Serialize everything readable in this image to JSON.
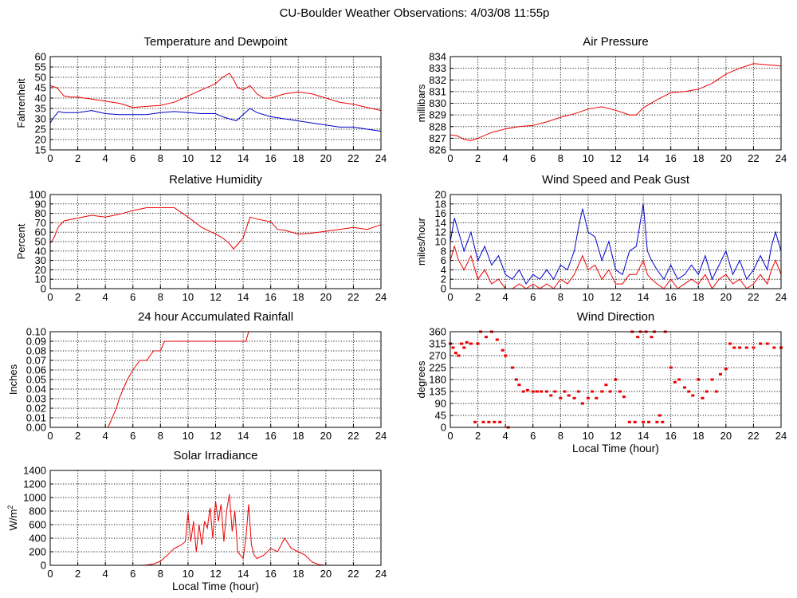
{
  "page": {
    "title": "CU-Boulder Weather Observations: 4/03/08 11:55p"
  },
  "colors": {
    "red": "#ee0000",
    "blue": "#0000cc",
    "grid": "#000000"
  },
  "chart_data": [
    {
      "id": "temp",
      "type": "line",
      "title": "Temperature and Dewpoint",
      "ylabel": "Fahrenheit",
      "xlabel": "",
      "xlim": [
        0,
        24
      ],
      "ylim": [
        15,
        60
      ],
      "xticks": [
        "0",
        "2",
        "4",
        "6",
        "8",
        "10",
        "12",
        "14",
        "16",
        "18",
        "20",
        "22",
        "24"
      ],
      "yticks": [
        "15",
        "20",
        "25",
        "30",
        "35",
        "40",
        "45",
        "50",
        "55",
        "60"
      ],
      "series": [
        {
          "color": "red",
          "x": [
            0,
            0.5,
            1,
            1.5,
            2,
            3,
            4,
            5,
            6,
            7,
            8,
            9,
            10,
            11,
            12,
            12.5,
            13,
            13.3,
            13.6,
            14,
            14.5,
            15,
            15.5,
            16,
            17,
            18,
            19,
            20,
            21,
            22,
            23,
            24
          ],
          "y": [
            46,
            45,
            41,
            40.5,
            40.5,
            39.5,
            38.5,
            37.5,
            35.5,
            36,
            36.5,
            38,
            41,
            44,
            47,
            50,
            52,
            49,
            45,
            44,
            46,
            42,
            40,
            40,
            42,
            43,
            42,
            40,
            38,
            37,
            35.5,
            34
          ]
        },
        {
          "color": "blue",
          "x": [
            0,
            0.3,
            0.6,
            1,
            2,
            3,
            4,
            5,
            6,
            7,
            8,
            9,
            10,
            11,
            12,
            12.5,
            13,
            13.5,
            14,
            14.5,
            15,
            16,
            17,
            18,
            19,
            20,
            21,
            22,
            23,
            24
          ],
          "y": [
            28,
            31,
            33.5,
            33,
            33,
            34,
            32.5,
            32,
            32,
            32,
            33,
            33.5,
            33,
            32.5,
            32.5,
            31,
            30,
            29,
            32,
            35,
            33,
            31,
            30,
            29,
            28,
            27,
            26,
            26,
            25,
            24
          ]
        }
      ]
    },
    {
      "id": "press",
      "type": "line",
      "title": "Air Pressure",
      "ylabel": "millibars",
      "xlabel": "",
      "xlim": [
        0,
        24
      ],
      "ylim": [
        826,
        834
      ],
      "xticks": [
        "0",
        "2",
        "4",
        "6",
        "8",
        "10",
        "12",
        "14",
        "16",
        "18",
        "20",
        "22",
        "24"
      ],
      "yticks": [
        "826",
        "827",
        "828",
        "829",
        "830",
        "831",
        "832",
        "833",
        "834"
      ],
      "series": [
        {
          "color": "red",
          "x": [
            0,
            0.5,
            1,
            1.5,
            2,
            3,
            4,
            5,
            6,
            7,
            8,
            9,
            10,
            11,
            12,
            13,
            13.5,
            14,
            15,
            16,
            17,
            18,
            19,
            20,
            21,
            22,
            23,
            24
          ],
          "y": [
            827.3,
            827.2,
            826.9,
            826.8,
            827,
            827.5,
            827.8,
            828,
            828.1,
            828.4,
            828.8,
            829.1,
            829.5,
            829.7,
            829.4,
            829,
            829,
            829.6,
            830.3,
            830.9,
            831,
            831.2,
            831.7,
            832.5,
            833,
            833.4,
            833.3,
            833.2
          ]
        }
      ]
    },
    {
      "id": "rh",
      "type": "line",
      "title": "Relative Humidity",
      "ylabel": "Percent",
      "xlabel": "",
      "xlim": [
        0,
        24
      ],
      "ylim": [
        0,
        100
      ],
      "xticks": [
        "0",
        "2",
        "4",
        "6",
        "8",
        "10",
        "12",
        "14",
        "16",
        "18",
        "20",
        "22",
        "24"
      ],
      "yticks": [
        "0",
        "10",
        "20",
        "30",
        "40",
        "50",
        "60",
        "70",
        "80",
        "90",
        "100"
      ],
      "series": [
        {
          "color": "red",
          "x": [
            0,
            0.3,
            0.6,
            1,
            2,
            3,
            4,
            5,
            6,
            7,
            8,
            9,
            10,
            11,
            12,
            12.5,
            13,
            13.3,
            13.6,
            14,
            14.5,
            15,
            16,
            16.5,
            17,
            18,
            19,
            20,
            21,
            22,
            23,
            24
          ],
          "y": [
            48,
            55,
            66,
            72,
            75,
            78,
            76,
            79,
            83,
            86,
            86,
            86,
            76,
            65,
            58,
            54,
            48,
            42,
            47,
            54,
            76,
            74,
            71,
            63,
            62,
            58,
            59,
            61,
            63,
            65,
            63,
            68
          ]
        }
      ]
    },
    {
      "id": "wind",
      "type": "line",
      "title": "Wind Speed and Peak Gust",
      "ylabel": "miles/hour",
      "xlabel": "",
      "xlim": [
        0,
        24
      ],
      "ylim": [
        0,
        20
      ],
      "xticks": [
        "0",
        "2",
        "4",
        "6",
        "8",
        "10",
        "12",
        "14",
        "16",
        "18",
        "20",
        "22",
        "24"
      ],
      "yticks": [
        "0",
        "2",
        "4",
        "6",
        "8",
        "10",
        "12",
        "14",
        "16",
        "18",
        "20"
      ],
      "series": [
        {
          "color": "blue",
          "x": [
            0,
            0.3,
            0.6,
            1,
            1.5,
            2,
            2.5,
            3,
            3.5,
            4,
            4.5,
            5,
            5.5,
            6,
            6.5,
            7,
            7.5,
            8,
            8.5,
            9,
            9.3,
            9.6,
            10,
            10.5,
            11,
            11.5,
            12,
            12.5,
            13,
            13.5,
            14,
            14.3,
            14.6,
            15,
            15.5,
            16,
            16.5,
            17,
            17.5,
            18,
            18.5,
            19,
            19.5,
            20,
            20.5,
            21,
            21.5,
            22,
            22.5,
            23,
            23.3,
            23.6,
            24
          ],
          "y": [
            10,
            15,
            12,
            8,
            12,
            6,
            9,
            5,
            7,
            3,
            2,
            4,
            1,
            3,
            2,
            4,
            2,
            5,
            4,
            8,
            13,
            17,
            12,
            11,
            6,
            10,
            4,
            3,
            8,
            9,
            18,
            8,
            6,
            4,
            2,
            5,
            2,
            3,
            5,
            3,
            7,
            2,
            5,
            8,
            3,
            6,
            2,
            4,
            7,
            4,
            9,
            12,
            8
          ]
        },
        {
          "color": "red",
          "x": [
            0,
            0.3,
            0.6,
            1,
            1.5,
            2,
            2.5,
            3,
            3.5,
            4,
            4.5,
            5,
            5.5,
            6,
            6.5,
            7,
            7.5,
            8,
            8.5,
            9,
            9.3,
            9.6,
            10,
            10.5,
            11,
            11.5,
            12,
            12.5,
            13,
            13.5,
            14,
            14.3,
            14.6,
            15,
            15.5,
            16,
            16.5,
            17,
            17.5,
            18,
            18.5,
            19,
            19.5,
            20,
            20.5,
            21,
            21.5,
            22,
            22.5,
            23,
            23.3,
            23.6,
            24
          ],
          "y": [
            6,
            9,
            6,
            4,
            7,
            2,
            4,
            1,
            2,
            0,
            0,
            1,
            0,
            1,
            0,
            1,
            0,
            2,
            1,
            3,
            5,
            7,
            4,
            5,
            2,
            4,
            1,
            1,
            3,
            3,
            6,
            3,
            2,
            1,
            0,
            2,
            0,
            1,
            2,
            1,
            3,
            0,
            2,
            3,
            1,
            2,
            0,
            1,
            3,
            1,
            4,
            6,
            3
          ]
        }
      ]
    },
    {
      "id": "rain",
      "type": "line",
      "title": "24 hour Accumulated Rainfall",
      "ylabel": "Inches",
      "xlabel": "",
      "xlim": [
        0,
        24
      ],
      "ylim": [
        0,
        0.1
      ],
      "xticks": [
        "0",
        "2",
        "4",
        "6",
        "8",
        "10",
        "12",
        "14",
        "16",
        "18",
        "20",
        "22",
        "24"
      ],
      "yticks": [
        "0.00",
        "0.01",
        "0.02",
        "0.03",
        "0.04",
        "0.05",
        "0.06",
        "0.07",
        "0.08",
        "0.09",
        "0.10"
      ],
      "series": [
        {
          "color": "red",
          "x": [
            0,
            4.2,
            4.5,
            4.8,
            5,
            5.3,
            5.6,
            6,
            6.5,
            7,
            7.5,
            8,
            8.3,
            10,
            12,
            14.2,
            14.4,
            24
          ],
          "y": [
            0,
            0,
            0.01,
            0.02,
            0.03,
            0.04,
            0.05,
            0.06,
            0.07,
            0.07,
            0.08,
            0.08,
            0.09,
            0.09,
            0.09,
            0.09,
            0.1,
            0.1
          ]
        }
      ]
    },
    {
      "id": "wdir",
      "type": "scatter",
      "title": "Wind Direction",
      "ylabel": "degrees",
      "xlabel": "Local Time (hour)",
      "xlim": [
        0,
        24
      ],
      "ylim": [
        0,
        360
      ],
      "xticks": [
        "0",
        "2",
        "4",
        "6",
        "8",
        "10",
        "12",
        "14",
        "16",
        "18",
        "20",
        "22",
        "24"
      ],
      "yticks": [
        "0",
        "45",
        "90",
        "135",
        "180",
        "225",
        "270",
        "315",
        "360"
      ],
      "series": [
        {
          "color": "red",
          "x": [
            0,
            0.2,
            0.4,
            0.6,
            0.8,
            1,
            1.2,
            1.5,
            1.8,
            2,
            2.2,
            2.4,
            2.6,
            2.8,
            3,
            3.2,
            3.4,
            3.6,
            3.8,
            4,
            4.2,
            4.5,
            4.8,
            5,
            5.3,
            5.6,
            6,
            6.3,
            6.6,
            7,
            7.3,
            7.6,
            8,
            8.3,
            8.6,
            9,
            9.3,
            9.6,
            10,
            10.3,
            10.6,
            11,
            11.3,
            11.6,
            12,
            12.3,
            12.6,
            13,
            13.2,
            13.4,
            13.6,
            13.8,
            14,
            14.2,
            14.4,
            14.6,
            14.8,
            15,
            15.2,
            15.4,
            15.6,
            16,
            16.3,
            16.6,
            17,
            17.3,
            17.6,
            18,
            18.3,
            18.6,
            19,
            19.3,
            19.6,
            20,
            20.3,
            20.6,
            21,
            21.5,
            22,
            22.5,
            23,
            23.5,
            24
          ],
          "y": [
            315,
            300,
            280,
            270,
            315,
            300,
            320,
            315,
            20,
            315,
            360,
            20,
            340,
            20,
            360,
            20,
            330,
            20,
            290,
            270,
            0,
            225,
            180,
            160,
            135,
            140,
            135,
            135,
            135,
            135,
            120,
            135,
            110,
            135,
            120,
            110,
            135,
            90,
            110,
            135,
            110,
            135,
            160,
            135,
            180,
            135,
            115,
            20,
            360,
            20,
            340,
            360,
            20,
            360,
            20,
            340,
            360,
            20,
            45,
            20,
            360,
            225,
            170,
            180,
            150,
            135,
            120,
            180,
            110,
            135,
            180,
            135,
            200,
            220,
            315,
            300,
            300,
            300,
            300,
            315,
            315,
            300,
            300
          ]
        }
      ]
    },
    {
      "id": "solar",
      "type": "line",
      "title": "Solar Irradiance",
      "ylabel": "W/m",
      "ylabel_sup": "2",
      "xlabel": "Local Time (hour)",
      "xlim": [
        0,
        24
      ],
      "ylim": [
        0,
        1400
      ],
      "xticks": [
        "0",
        "2",
        "4",
        "6",
        "8",
        "10",
        "12",
        "14",
        "16",
        "18",
        "20",
        "22",
        "24"
      ],
      "yticks": [
        "0",
        "200",
        "400",
        "600",
        "800",
        "1000",
        "1200",
        "1400"
      ],
      "series": [
        {
          "color": "red",
          "x": [
            0,
            6.5,
            7,
            7.5,
            8,
            8.5,
            9,
            9.5,
            9.8,
            10,
            10.2,
            10.4,
            10.6,
            10.8,
            11,
            11.2,
            11.4,
            11.6,
            11.8,
            12,
            12.2,
            12.4,
            12.6,
            12.8,
            13,
            13.2,
            13.4,
            13.6,
            13.8,
            14,
            14.2,
            14.4,
            14.6,
            14.8,
            15,
            15.5,
            16,
            16.5,
            17,
            17.5,
            18,
            18.5,
            19,
            19.5,
            20,
            24
          ],
          "y": [
            0,
            0,
            5,
            20,
            60,
            150,
            250,
            300,
            350,
            780,
            350,
            650,
            200,
            600,
            300,
            650,
            550,
            850,
            400,
            950,
            650,
            900,
            350,
            800,
            1050,
            500,
            800,
            200,
            150,
            100,
            400,
            900,
            300,
            150,
            100,
            150,
            250,
            200,
            400,
            250,
            200,
            150,
            50,
            10,
            0,
            0
          ]
        }
      ]
    }
  ]
}
